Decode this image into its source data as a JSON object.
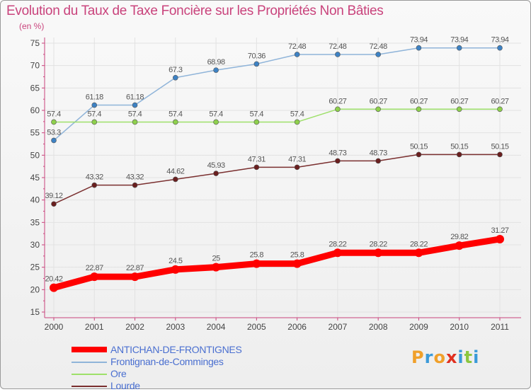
{
  "chart_data": {
    "type": "line",
    "title": "Evolution du Taux de Taxe Foncière sur les Propriétés Non Bâties",
    "subtitle": "(en %)",
    "x": [
      "2000",
      "2001",
      "2002",
      "2003",
      "2004",
      "2005",
      "2006",
      "2007",
      "2008",
      "2009",
      "2010",
      "2011"
    ],
    "ylim": [
      15,
      75
    ],
    "yticks": [
      15,
      20,
      25,
      30,
      35,
      40,
      45,
      50,
      55,
      60,
      65,
      70,
      75
    ],
    "grid": true,
    "legend_position": "bottom-left",
    "series": [
      {
        "name": "ANTICHAN-DE-FRONTIGNES",
        "color": "#ff0000",
        "point_color": "#ff0000",
        "values": [
          20.42,
          22.87,
          22.87,
          24.5,
          25,
          25.8,
          25.8,
          28.22,
          28.22,
          28.22,
          29.82,
          31.27
        ],
        "labels": [
          "20.42",
          "22.87",
          "22.87",
          "24.5",
          "25",
          "25.8",
          "25.8",
          "28.22",
          "28.22",
          "28.22",
          "29.82",
          "31.27"
        ]
      },
      {
        "name": "Frontignan-de-Comminges",
        "color": "#8fb4d9",
        "point_color": "#3d82c4",
        "values": [
          53.3,
          61.18,
          61.18,
          67.3,
          68.98,
          70.36,
          72.48,
          72.48,
          72.48,
          73.94,
          73.94,
          73.94
        ],
        "labels": [
          "53.3",
          "61.18",
          "61.18",
          "67.3",
          "68.98",
          "70.36",
          "72.48",
          "72.48",
          "72.48",
          "73.94",
          "73.94",
          "73.94"
        ]
      },
      {
        "name": "Ore",
        "color": "#9ee06a",
        "point_color": "#8ed04c",
        "values": [
          57.4,
          57.4,
          57.4,
          57.4,
          57.4,
          57.4,
          57.4,
          60.27,
          60.27,
          60.27,
          60.27,
          60.27
        ],
        "labels": [
          "57.4",
          "57.4",
          "57.4",
          "57.4",
          "57.4",
          "57.4",
          "57.4",
          "60.27",
          "60.27",
          "60.27",
          "60.27",
          "60.27"
        ]
      },
      {
        "name": "Lourde",
        "color": "#7a2f2f",
        "point_color": "#6a1f1f",
        "values": [
          39.12,
          43.32,
          43.32,
          44.62,
          45.93,
          47.31,
          47.31,
          48.73,
          48.73,
          50.15,
          50.15,
          50.15
        ],
        "labels": [
          "39.12",
          "43.32",
          "43.32",
          "44.62",
          "45.93",
          "47.31",
          "47.31",
          "48.73",
          "48.73",
          "50.15",
          "50.15",
          "50.15"
        ]
      }
    ]
  },
  "logo": {
    "text": "Proxiti",
    "letters": [
      "P",
      "r",
      "o",
      "x",
      "i",
      "t",
      "i"
    ],
    "colors": [
      "#f0a02a",
      "#3a9ad9",
      "#f0a02a",
      "#e03020",
      "#3a9ad9",
      "#8cc63f",
      "#3a9ad9"
    ]
  }
}
